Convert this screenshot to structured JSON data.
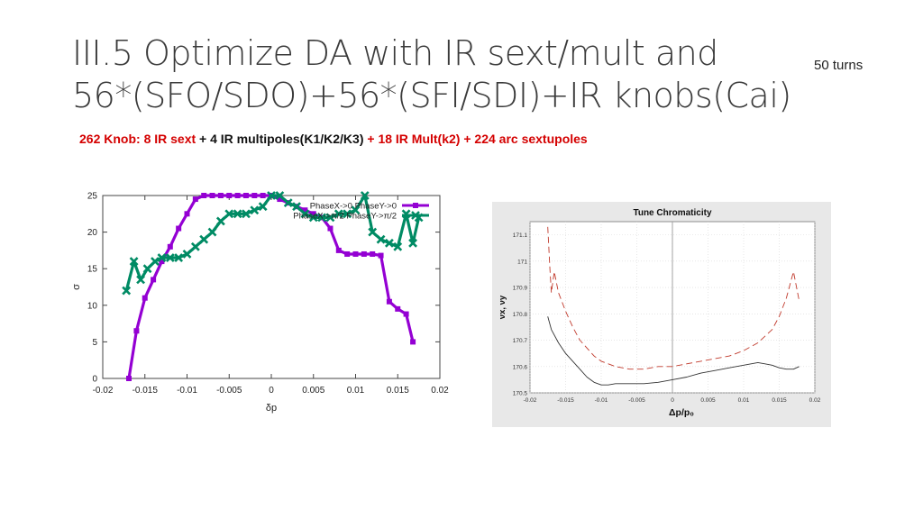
{
  "slide": {
    "title_line1": "III.5 Optimize DA with IR sext/mult and",
    "title_line2": "56*(SFO/SDO)+56*(SFI/SDI)+IR knobs(Cai)",
    "turns_note": "50 turns",
    "subtitle": [
      {
        "text": "262 Knob: 8 IR sext ",
        "color": "red"
      },
      {
        "text": "+ 4 IR multipoles(K1/K2/K3) ",
        "color": "black"
      },
      {
        "text": "+ 18 IR Mult(k2) ",
        "color": "red"
      },
      {
        "text": "+ 224 arc sextupoles",
        "color": "red"
      }
    ]
  },
  "chart_data": [
    {
      "type": "line",
      "title": "",
      "xlabel": "δp",
      "ylabel": "σ",
      "xlim": [
        -0.02,
        0.02
      ],
      "ylim": [
        0,
        25
      ],
      "x_ticks": [
        -0.02,
        -0.015,
        -0.01,
        -0.005,
        0,
        0.005,
        0.01,
        0.015,
        0.02
      ],
      "y_ticks": [
        0,
        5,
        10,
        15,
        20,
        25
      ],
      "x_tick_labels": [
        "-0.02",
        "-0.015",
        "-0.01",
        "-0.005",
        "0",
        "0.005",
        "0.01",
        "0.015",
        "0.02"
      ],
      "y_tick_labels": [
        "0",
        "5",
        "10",
        "15",
        "20",
        "25"
      ],
      "grid": false,
      "legend": "top-right",
      "series": [
        {
          "name": "PhaseX->0 PhaseY->0",
          "color": "#9400d3",
          "marker": "square",
          "points": [
            [
              -0.0169,
              0
            ],
            [
              -0.016,
              6.5
            ],
            [
              -0.015,
              11
            ],
            [
              -0.014,
              13.5
            ],
            [
              -0.013,
              16
            ],
            [
              -0.012,
              18
            ],
            [
              -0.011,
              20.5
            ],
            [
              -0.01,
              22.5
            ],
            [
              -0.009,
              24.5
            ],
            [
              -0.008,
              25
            ],
            [
              -0.007,
              25
            ],
            [
              -0.006,
              25
            ],
            [
              -0.005,
              25
            ],
            [
              -0.004,
              25
            ],
            [
              -0.003,
              25
            ],
            [
              -0.002,
              25
            ],
            [
              -0.001,
              25
            ],
            [
              0,
              25
            ],
            [
              0.001,
              24.5
            ],
            [
              0.002,
              24
            ],
            [
              0.003,
              23.5
            ],
            [
              0.004,
              23
            ],
            [
              0.005,
              22.5
            ],
            [
              0.006,
              22
            ],
            [
              0.007,
              20.5
            ],
            [
              0.008,
              17.5
            ],
            [
              0.009,
              17
            ],
            [
              0.01,
              17
            ],
            [
              0.011,
              17
            ],
            [
              0.012,
              17
            ],
            [
              0.013,
              16.8
            ],
            [
              0.014,
              10.5
            ],
            [
              0.015,
              9.5
            ],
            [
              0.016,
              8.8
            ],
            [
              0.0168,
              5
            ]
          ]
        },
        {
          "name": "PhaseX->π/2 PhaseY->π/2",
          "color": "#008b64",
          "marker": "cross",
          "points": [
            [
              -0.0172,
              12
            ],
            [
              -0.0163,
              16
            ],
            [
              -0.0155,
              13.5
            ],
            [
              -0.0147,
              15
            ],
            [
              -0.0138,
              16
            ],
            [
              -0.013,
              16.5
            ],
            [
              -0.012,
              16.5
            ],
            [
              -0.011,
              16.5
            ],
            [
              -0.01,
              17
            ],
            [
              -0.009,
              18
            ],
            [
              -0.008,
              19
            ],
            [
              -0.007,
              20
            ],
            [
              -0.006,
              21.5
            ],
            [
              -0.005,
              22.5
            ],
            [
              -0.004,
              22.5
            ],
            [
              -0.003,
              22.5
            ],
            [
              -0.002,
              23
            ],
            [
              -0.001,
              23.5
            ],
            [
              0,
              25
            ],
            [
              0.001,
              25
            ],
            [
              0.002,
              24
            ],
            [
              0.003,
              23.5
            ],
            [
              0.004,
              22.5
            ],
            [
              0.005,
              22
            ],
            [
              0.006,
              22
            ],
            [
              0.007,
              22
            ],
            [
              0.008,
              22.5
            ],
            [
              0.009,
              22.5
            ],
            [
              0.01,
              23
            ],
            [
              0.0111,
              25
            ],
            [
              0.012,
              20
            ],
            [
              0.013,
              19
            ],
            [
              0.014,
              18.5
            ],
            [
              0.015,
              18
            ],
            [
              0.016,
              22.5
            ],
            [
              0.0168,
              18.5
            ],
            [
              0.0175,
              22
            ]
          ]
        }
      ]
    },
    {
      "type": "line",
      "title": "Tune Chromaticity",
      "xlabel": "Δp/p₀",
      "ylabel": "νx, νy",
      "xlim": [
        -0.02,
        0.02
      ],
      "ylim": [
        170.5,
        171.15
      ],
      "x_ticks": [
        -0.02,
        -0.015,
        -0.01,
        -0.005,
        0,
        0.005,
        0.01,
        0.015,
        0.02
      ],
      "y_ticks": [
        170.5,
        170.6,
        170.7,
        170.8,
        170.9,
        171,
        171.1
      ],
      "x_tick_labels": [
        "-0.02",
        "-0.015",
        "-0.01",
        "-0.005",
        "0",
        "0.005",
        "0.01",
        "0.015",
        "0.02"
      ],
      "y_tick_labels": [
        "170.5",
        "170.6",
        "170.7",
        "170.8",
        "170.9",
        "171",
        "171.1"
      ],
      "grid": true,
      "vertical_marker_at": 0,
      "series": [
        {
          "color": "#c0392b",
          "dash": true,
          "points": [
            [
              -0.0175,
              171.13
            ],
            [
              -0.0172,
              170.97
            ],
            [
              -0.017,
              170.88
            ],
            [
              -0.0168,
              170.92
            ],
            [
              -0.0166,
              170.96
            ],
            [
              -0.016,
              170.88
            ],
            [
              -0.015,
              170.81
            ],
            [
              -0.014,
              170.75
            ],
            [
              -0.013,
              170.7
            ],
            [
              -0.012,
              170.67
            ],
            [
              -0.011,
              170.64
            ],
            [
              -0.01,
              170.62
            ],
            [
              -0.008,
              170.6
            ],
            [
              -0.006,
              170.59
            ],
            [
              -0.004,
              170.59
            ],
            [
              -0.002,
              170.6
            ],
            [
              0,
              170.6
            ],
            [
              0.002,
              170.61
            ],
            [
              0.004,
              170.62
            ],
            [
              0.006,
              170.63
            ],
            [
              0.008,
              170.64
            ],
            [
              0.01,
              170.66
            ],
            [
              0.012,
              170.69
            ],
            [
              0.014,
              170.74
            ],
            [
              0.015,
              170.79
            ],
            [
              0.016,
              170.86
            ],
            [
              0.017,
              170.96
            ],
            [
              0.0178,
              170.85
            ]
          ]
        },
        {
          "color": "#333333",
          "dash": false,
          "points": [
            [
              -0.0175,
              170.79
            ],
            [
              -0.017,
              170.74
            ],
            [
              -0.016,
              170.69
            ],
            [
              -0.015,
              170.65
            ],
            [
              -0.014,
              170.62
            ],
            [
              -0.013,
              170.59
            ],
            [
              -0.012,
              170.56
            ],
            [
              -0.011,
              170.54
            ],
            [
              -0.01,
              170.53
            ],
            [
              -0.009,
              170.53
            ],
            [
              -0.008,
              170.535
            ],
            [
              -0.006,
              170.535
            ],
            [
              -0.004,
              170.535
            ],
            [
              -0.002,
              170.54
            ],
            [
              0,
              170.55
            ],
            [
              0.002,
              170.56
            ],
            [
              0.004,
              170.575
            ],
            [
              0.006,
              170.585
            ],
            [
              0.008,
              170.595
            ],
            [
              0.01,
              170.605
            ],
            [
              0.012,
              170.615
            ],
            [
              0.013,
              170.61
            ],
            [
              0.014,
              170.605
            ],
            [
              0.015,
              170.595
            ],
            [
              0.016,
              170.59
            ],
            [
              0.017,
              170.59
            ],
            [
              0.0178,
              170.6
            ]
          ]
        }
      ]
    }
  ]
}
